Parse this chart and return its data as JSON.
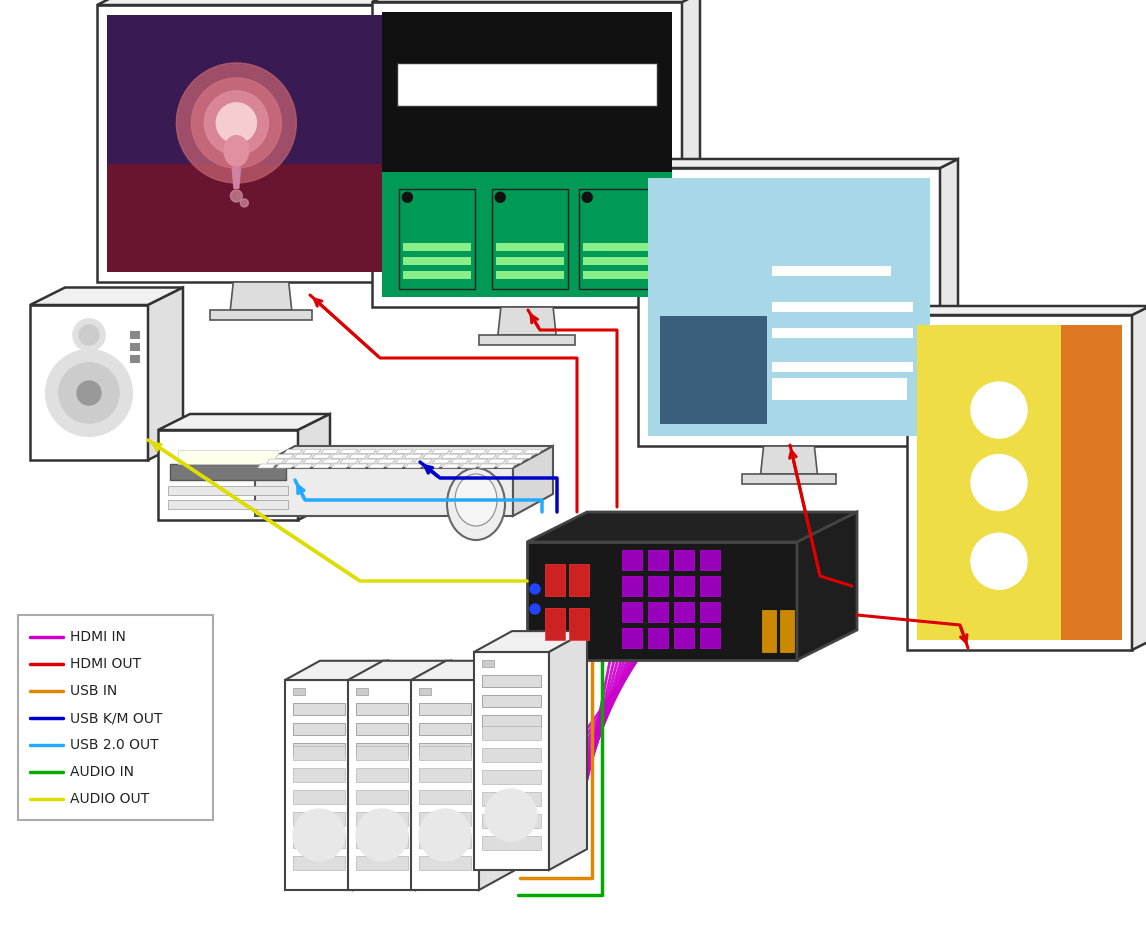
{
  "legend_items": [
    {
      "label": "HDMI IN",
      "color": "#cc00cc"
    },
    {
      "label": "HDMI OUT",
      "color": "#dd0000"
    },
    {
      "label": "USB IN",
      "color": "#dd8800"
    },
    {
      "label": "USB K/M OUT",
      "color": "#0000cc"
    },
    {
      "label": "USB 2.0 OUT",
      "color": "#22aaff"
    },
    {
      "label": "AUDIO IN",
      "color": "#00aa00"
    },
    {
      "label": "AUDIO OUT",
      "color": "#dddd00"
    }
  ],
  "bg_color": "#ffffff"
}
